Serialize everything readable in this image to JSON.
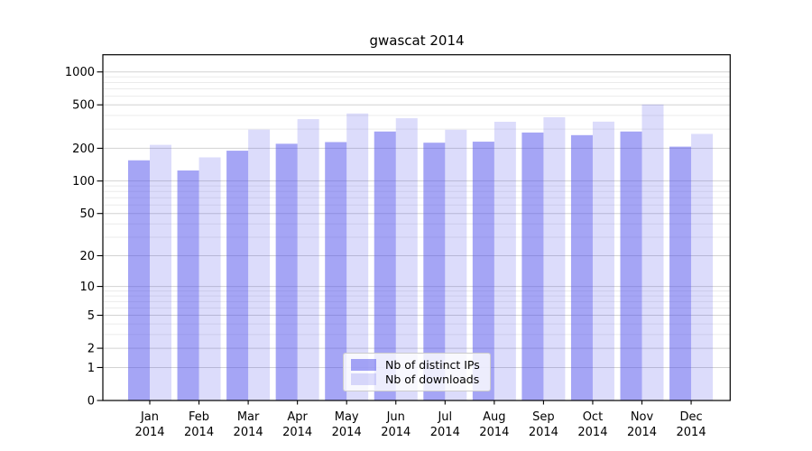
{
  "chart_data": {
    "type": "bar",
    "title": "gwascat 2014",
    "year_label": "2014",
    "categories": [
      "Jan",
      "Feb",
      "Mar",
      "Apr",
      "May",
      "Jun",
      "Jul",
      "Aug",
      "Sep",
      "Oct",
      "Nov",
      "Dec"
    ],
    "series": [
      {
        "name": "Nb of distinct IPs",
        "values": [
          155,
          125,
          190,
          220,
          228,
          285,
          225,
          230,
          279,
          264,
          285,
          207
        ],
        "color": "rgba(75,75,235,0.5)"
      },
      {
        "name": "Nb of downloads",
        "values": [
          215,
          165,
          297,
          370,
          417,
          377,
          296,
          350,
          385,
          351,
          504,
          271
        ],
        "color": "rgba(75,75,235,0.195)"
      }
    ],
    "yticks": [
      1000,
      500,
      200,
      100,
      50,
      20,
      10,
      5,
      2,
      1,
      0
    ],
    "scale": "log1p",
    "ylim": [
      0,
      1430
    ],
    "grid": true,
    "legend_position": "bottom-center"
  },
  "colors": {
    "axis": "#000000",
    "grid_major": "#d2d2d2",
    "grid_minor": "#ebebeb",
    "bar_base": "#4b4beb"
  }
}
